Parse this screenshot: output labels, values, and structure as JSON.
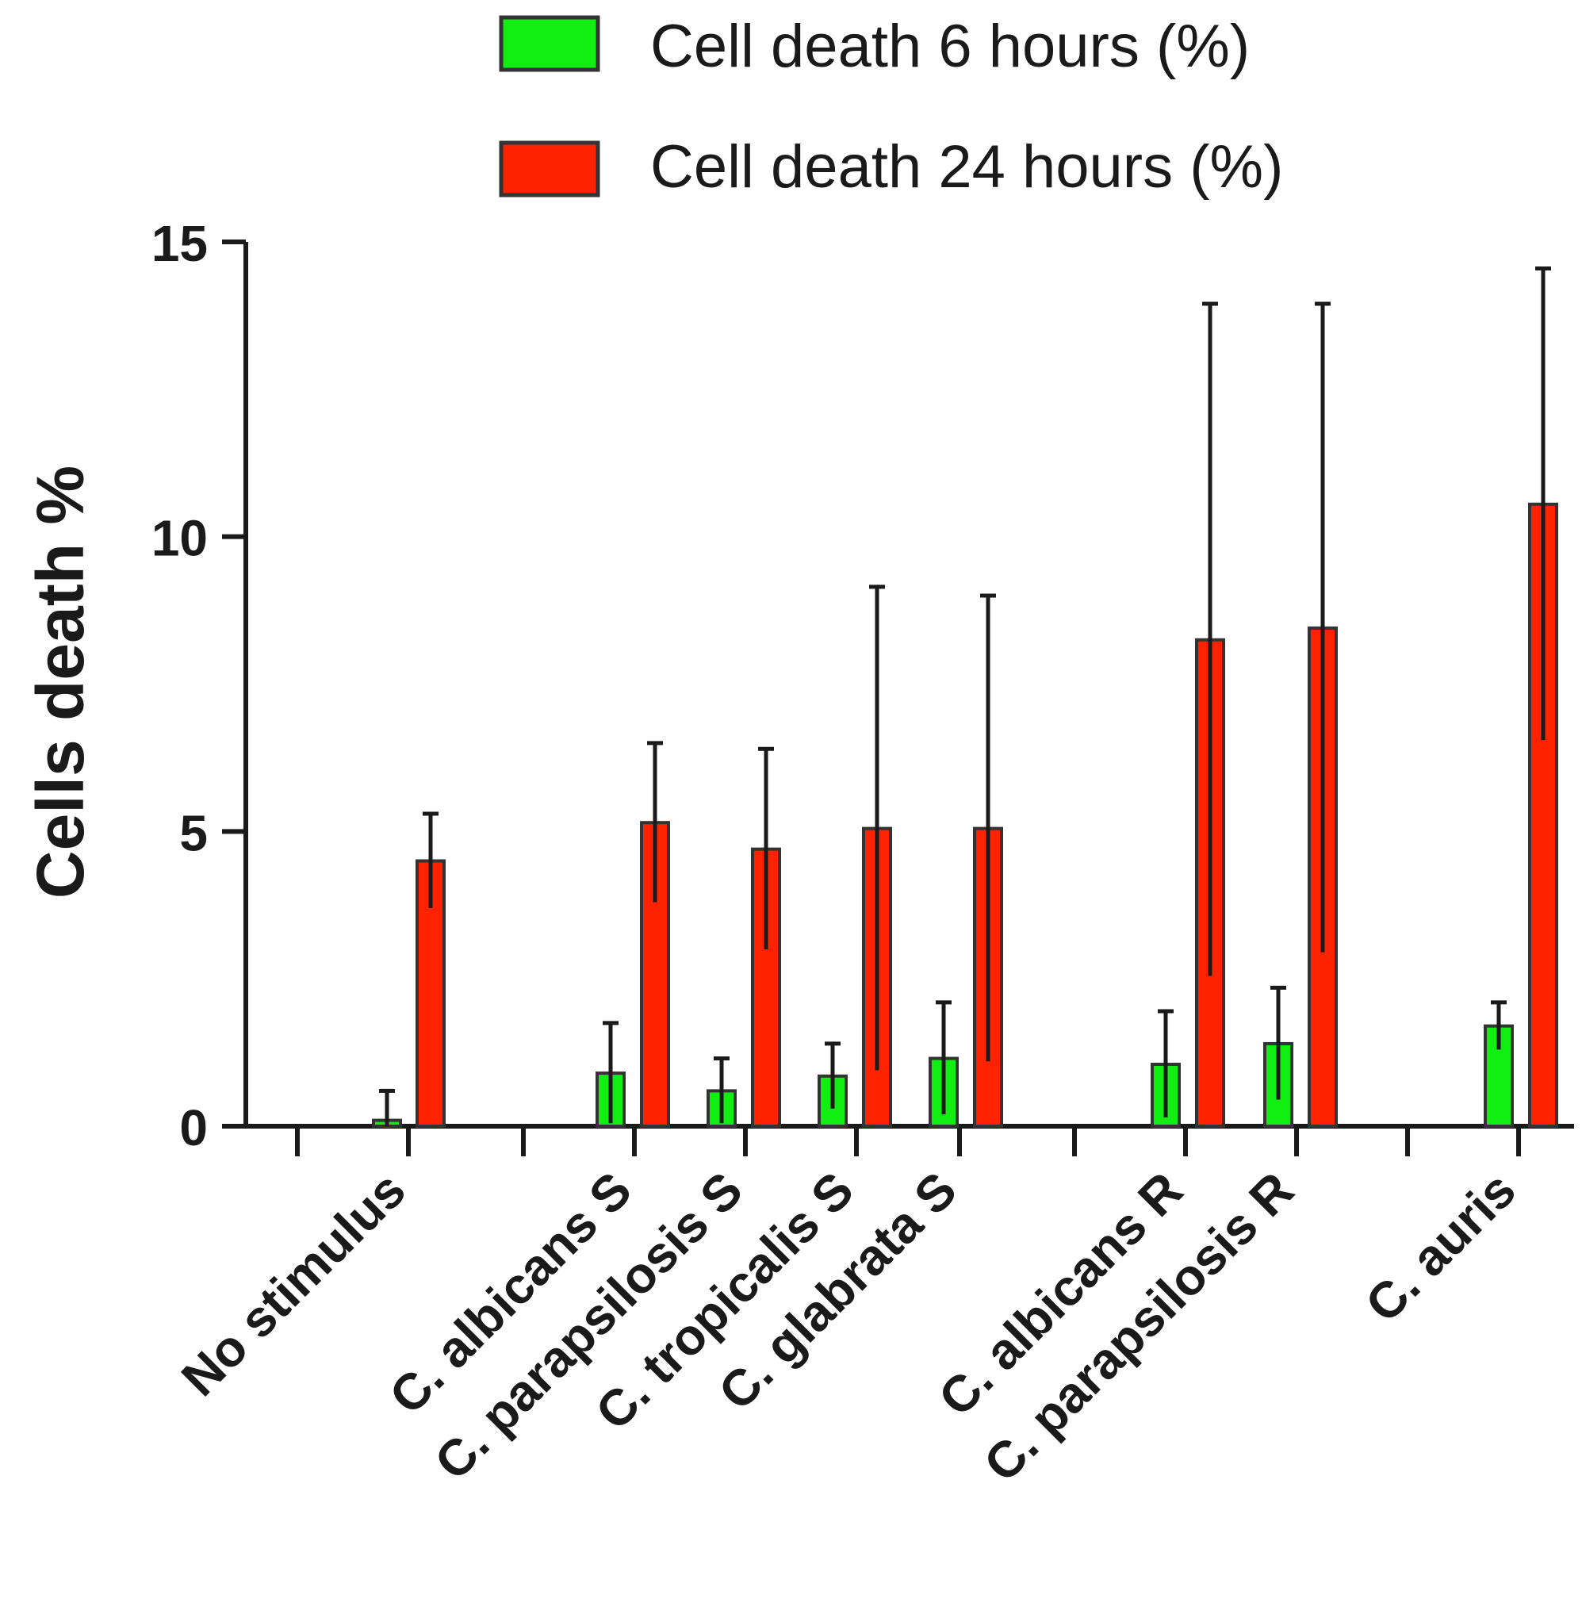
{
  "chart_data": {
    "type": "bar",
    "title": "",
    "xlabel": "",
    "ylabel": "Cells death %",
    "ylim": [
      0,
      15
    ],
    "yticks": [
      0,
      5,
      10,
      15
    ],
    "legend_position": "top-right",
    "categories": [
      "No stimulus",
      "C. albicans S",
      "C. parapsilosis S",
      "C. tropicalis S",
      "C. glabrata S",
      "C. albicans R",
      "C. parapsilosis R",
      "C. auris"
    ],
    "series": [
      {
        "name": "Cell death 6 hours (%)",
        "color": "#11ee11",
        "values": [
          0.1,
          0.9,
          0.6,
          0.85,
          1.15,
          1.05,
          1.4,
          1.7
        ],
        "errors": [
          0.5,
          0.85,
          0.55,
          0.55,
          0.95,
          0.9,
          0.95,
          0.4
        ]
      },
      {
        "name": "Cell death 24 hours (%)",
        "color": "#ff2200",
        "values": [
          4.5,
          5.15,
          4.7,
          5.05,
          5.05,
          8.25,
          8.45,
          10.55
        ],
        "errors": [
          0.8,
          1.35,
          1.7,
          4.1,
          3.95,
          5.7,
          5.5,
          4.0
        ]
      }
    ]
  }
}
